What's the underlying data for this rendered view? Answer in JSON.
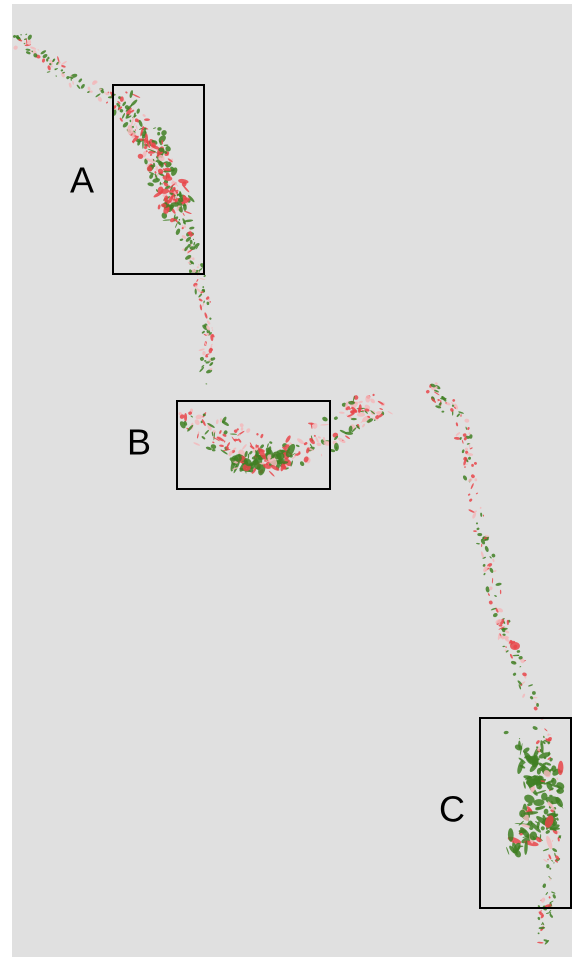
{
  "regions": [
    {
      "label": "A"
    },
    {
      "label": "B"
    },
    {
      "label": "C"
    }
  ]
}
